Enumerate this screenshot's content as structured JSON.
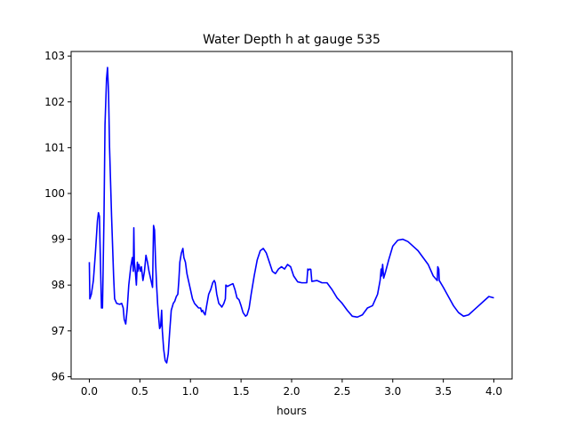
{
  "chart_data": {
    "type": "line",
    "title": "Water Depth h at gauge 535",
    "xlabel": "hours",
    "ylabel": "",
    "xlim": [
      -0.18,
      4.18
    ],
    "ylim": [
      95.95,
      103.1
    ],
    "xticks": [
      0.0,
      0.5,
      1.0,
      1.5,
      2.0,
      2.5,
      3.0,
      3.5,
      4.0
    ],
    "xtick_labels": [
      "0.0",
      "0.5",
      "1.0",
      "1.5",
      "2.0",
      "2.5",
      "3.0",
      "3.5",
      "4.0"
    ],
    "yticks": [
      96,
      97,
      98,
      99,
      100,
      101,
      102,
      103
    ],
    "ytick_labels": [
      "96",
      "97",
      "98",
      "99",
      "100",
      "101",
      "102",
      "103"
    ],
    "grid": false,
    "series": [
      {
        "color": "#0000ff",
        "points": [
          [
            0.0,
            98.5
          ],
          [
            0.005,
            97.7
          ],
          [
            0.02,
            97.8
          ],
          [
            0.04,
            98.1
          ],
          [
            0.06,
            98.7
          ],
          [
            0.08,
            99.4
          ],
          [
            0.09,
            99.58
          ],
          [
            0.1,
            99.5
          ],
          [
            0.11,
            98.5
          ],
          [
            0.12,
            97.5
          ],
          [
            0.13,
            97.5
          ],
          [
            0.145,
            99.5
          ],
          [
            0.155,
            101.5
          ],
          [
            0.17,
            102.5
          ],
          [
            0.18,
            102.75
          ],
          [
            0.19,
            102.2
          ],
          [
            0.2,
            101.0
          ],
          [
            0.22,
            99.5
          ],
          [
            0.24,
            98.2
          ],
          [
            0.25,
            97.7
          ],
          [
            0.27,
            97.6
          ],
          [
            0.3,
            97.58
          ],
          [
            0.32,
            97.6
          ],
          [
            0.335,
            97.5
          ],
          [
            0.345,
            97.25
          ],
          [
            0.36,
            97.15
          ],
          [
            0.375,
            97.5
          ],
          [
            0.39,
            98.0
          ],
          [
            0.41,
            98.4
          ],
          [
            0.425,
            98.6
          ],
          [
            0.435,
            98.3
          ],
          [
            0.44,
            99.25
          ],
          [
            0.445,
            98.5
          ],
          [
            0.455,
            98.3
          ],
          [
            0.465,
            98.0
          ],
          [
            0.475,
            98.5
          ],
          [
            0.48,
            98.3
          ],
          [
            0.49,
            98.45
          ],
          [
            0.505,
            98.3
          ],
          [
            0.515,
            98.4
          ],
          [
            0.53,
            98.1
          ],
          [
            0.545,
            98.3
          ],
          [
            0.56,
            98.65
          ],
          [
            0.575,
            98.5
          ],
          [
            0.59,
            98.3
          ],
          [
            0.61,
            98.1
          ],
          [
            0.625,
            97.95
          ],
          [
            0.635,
            99.3
          ],
          [
            0.645,
            99.2
          ],
          [
            0.655,
            98.5
          ],
          [
            0.665,
            98.0
          ],
          [
            0.675,
            97.6
          ],
          [
            0.685,
            97.3
          ],
          [
            0.695,
            97.05
          ],
          [
            0.705,
            97.1
          ],
          [
            0.715,
            97.45
          ],
          [
            0.722,
            97.0
          ],
          [
            0.735,
            96.6
          ],
          [
            0.75,
            96.35
          ],
          [
            0.765,
            96.3
          ],
          [
            0.78,
            96.5
          ],
          [
            0.795,
            97.0
          ],
          [
            0.81,
            97.45
          ],
          [
            0.83,
            97.6
          ],
          [
            0.845,
            97.65
          ],
          [
            0.86,
            97.75
          ],
          [
            0.875,
            97.8
          ],
          [
            0.885,
            98.1
          ],
          [
            0.895,
            98.5
          ],
          [
            0.91,
            98.7
          ],
          [
            0.925,
            98.8
          ],
          [
            0.935,
            98.6
          ],
          [
            0.95,
            98.5
          ],
          [
            0.965,
            98.25
          ],
          [
            0.98,
            98.1
          ],
          [
            1.0,
            97.9
          ],
          [
            1.02,
            97.7
          ],
          [
            1.04,
            97.6
          ],
          [
            1.06,
            97.55
          ],
          [
            1.08,
            97.5
          ],
          [
            1.1,
            97.5
          ],
          [
            1.11,
            97.42
          ],
          [
            1.12,
            97.45
          ],
          [
            1.13,
            97.4
          ],
          [
            1.145,
            97.35
          ],
          [
            1.16,
            97.55
          ],
          [
            1.18,
            97.8
          ],
          [
            1.2,
            97.9
          ],
          [
            1.22,
            98.05
          ],
          [
            1.235,
            98.1
          ],
          [
            1.245,
            98.05
          ],
          [
            1.26,
            97.8
          ],
          [
            1.28,
            97.6
          ],
          [
            1.3,
            97.55
          ],
          [
            1.31,
            97.52
          ],
          [
            1.33,
            97.6
          ],
          [
            1.345,
            97.7
          ],
          [
            1.35,
            98.0
          ],
          [
            1.365,
            97.97
          ],
          [
            1.39,
            98.0
          ],
          [
            1.42,
            98.03
          ],
          [
            1.44,
            97.9
          ],
          [
            1.46,
            97.72
          ],
          [
            1.48,
            97.68
          ],
          [
            1.5,
            97.55
          ],
          [
            1.52,
            97.4
          ],
          [
            1.545,
            97.32
          ],
          [
            1.56,
            97.35
          ],
          [
            1.58,
            97.5
          ],
          [
            1.6,
            97.8
          ],
          [
            1.63,
            98.2
          ],
          [
            1.66,
            98.55
          ],
          [
            1.69,
            98.75
          ],
          [
            1.72,
            98.8
          ],
          [
            1.75,
            98.7
          ],
          [
            1.78,
            98.5
          ],
          [
            1.81,
            98.3
          ],
          [
            1.84,
            98.25
          ],
          [
            1.87,
            98.35
          ],
          [
            1.9,
            98.4
          ],
          [
            1.93,
            98.35
          ],
          [
            1.96,
            98.45
          ],
          [
            1.99,
            98.4
          ],
          [
            2.02,
            98.2
          ],
          [
            2.06,
            98.07
          ],
          [
            2.1,
            98.05
          ],
          [
            2.15,
            98.05
          ],
          [
            2.16,
            98.35
          ],
          [
            2.17,
            98.33
          ],
          [
            2.18,
            98.35
          ],
          [
            2.19,
            98.34
          ],
          [
            2.2,
            98.08
          ],
          [
            2.25,
            98.1
          ],
          [
            2.3,
            98.05
          ],
          [
            2.35,
            98.05
          ],
          [
            2.4,
            97.9
          ],
          [
            2.45,
            97.72
          ],
          [
            2.5,
            97.6
          ],
          [
            2.55,
            97.45
          ],
          [
            2.6,
            97.32
          ],
          [
            2.65,
            97.3
          ],
          [
            2.7,
            97.35
          ],
          [
            2.75,
            97.5
          ],
          [
            2.8,
            97.55
          ],
          [
            2.85,
            97.8
          ],
          [
            2.875,
            98.1
          ],
          [
            2.885,
            98.35
          ],
          [
            2.89,
            98.2
          ],
          [
            2.9,
            98.45
          ],
          [
            2.91,
            98.15
          ],
          [
            2.93,
            98.3
          ],
          [
            2.96,
            98.55
          ],
          [
            3.0,
            98.85
          ],
          [
            3.05,
            98.98
          ],
          [
            3.1,
            99.0
          ],
          [
            3.15,
            98.95
          ],
          [
            3.2,
            98.85
          ],
          [
            3.25,
            98.75
          ],
          [
            3.3,
            98.6
          ],
          [
            3.35,
            98.45
          ],
          [
            3.4,
            98.2
          ],
          [
            3.44,
            98.1
          ],
          [
            3.445,
            98.4
          ],
          [
            3.455,
            98.35
          ],
          [
            3.46,
            98.1
          ],
          [
            3.5,
            97.95
          ],
          [
            3.55,
            97.75
          ],
          [
            3.6,
            97.55
          ],
          [
            3.65,
            97.4
          ],
          [
            3.7,
            97.32
          ],
          [
            3.75,
            97.35
          ],
          [
            3.8,
            97.45
          ],
          [
            3.85,
            97.55
          ],
          [
            3.9,
            97.65
          ],
          [
            3.95,
            97.75
          ],
          [
            4.0,
            97.72
          ]
        ]
      }
    ]
  }
}
